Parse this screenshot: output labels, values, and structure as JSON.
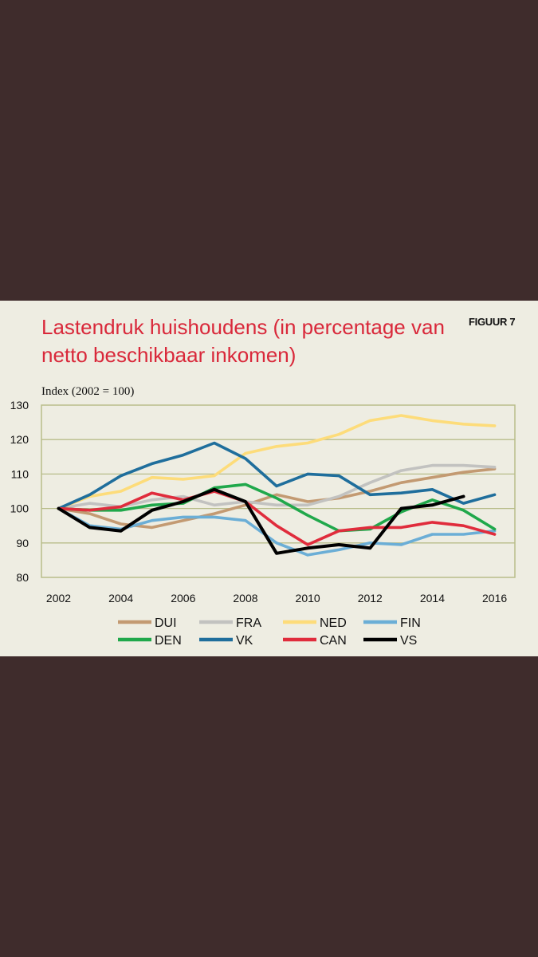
{
  "page": {
    "background": "#3f2c2c"
  },
  "figure": {
    "label": "FIGUUR 7",
    "background": "#eeede2"
  },
  "chart_data": {
    "type": "line",
    "title": "Lastendruk huishoudens (in percentage van netto beschikbaar inkomen)",
    "ylabel": "Index (2002 = 100)",
    "xlabel": "",
    "x": [
      2002,
      2003,
      2004,
      2005,
      2006,
      2007,
      2008,
      2009,
      2010,
      2011,
      2012,
      2013,
      2014,
      2015,
      2016
    ],
    "xticks": [
      "2002",
      "2004",
      "2006",
      "2008",
      "2010",
      "2012",
      "2014",
      "2016"
    ],
    "xtick_values": [
      2002,
      2004,
      2006,
      2008,
      2010,
      2012,
      2014,
      2016
    ],
    "ylim": [
      80,
      130
    ],
    "yticks": [
      "80",
      "90",
      "100",
      "110",
      "120",
      "130"
    ],
    "ytick_values": [
      80,
      90,
      100,
      110,
      120,
      130
    ],
    "grid": true,
    "legend_position": "bottom",
    "series": [
      {
        "name": "DUI",
        "color": "#c39a72",
        "values": [
          100,
          98.5,
          95.5,
          94.5,
          96.5,
          98.5,
          101,
          104,
          102,
          103,
          105,
          107.5,
          109,
          110.5,
          111.5
        ]
      },
      {
        "name": "FRA",
        "color": "#c2c2c0",
        "values": [
          100,
          101.5,
          100.5,
          102.5,
          103.5,
          101,
          102,
          101,
          101,
          103.5,
          107.5,
          111,
          112.5,
          112.5,
          112
        ]
      },
      {
        "name": "NED",
        "color": "#fddc7a",
        "values": [
          100,
          103.5,
          105,
          109,
          108.5,
          109.5,
          116,
          118,
          119,
          121.5,
          125.5,
          127,
          125.5,
          124.5,
          124
        ]
      },
      {
        "name": "FIN",
        "color": "#6baed6",
        "values": [
          100,
          95,
          94,
          96.5,
          97.5,
          97.5,
          96.5,
          90,
          86.5,
          88,
          90,
          89.5,
          92.5,
          92.5,
          93.5
        ]
      },
      {
        "name": "DEN",
        "color": "#20a84b",
        "values": [
          100,
          99.5,
          99.5,
          101,
          101.5,
          106,
          107,
          103,
          98,
          93.5,
          94,
          99,
          102.5,
          99.5,
          94
        ]
      },
      {
        "name": "VK",
        "color": "#1f6e9c",
        "values": [
          100,
          104,
          109.5,
          113,
          115.5,
          119,
          114.5,
          106.5,
          110,
          109.5,
          104,
          104.5,
          105.5,
          101.5,
          104
        ]
      },
      {
        "name": "CAN",
        "color": "#e02c3c",
        "values": [
          100,
          99.5,
          100.5,
          104.5,
          102.5,
          105,
          102,
          95,
          89.5,
          93.5,
          94.5,
          94.5,
          96,
          95,
          92.5
        ]
      },
      {
        "name": "VS",
        "color": "#000000",
        "values": [
          100,
          94.5,
          93.5,
          99.5,
          102,
          105.5,
          102,
          87,
          88.5,
          89.5,
          88.5,
          100,
          101,
          103.5,
          null
        ]
      }
    ]
  }
}
